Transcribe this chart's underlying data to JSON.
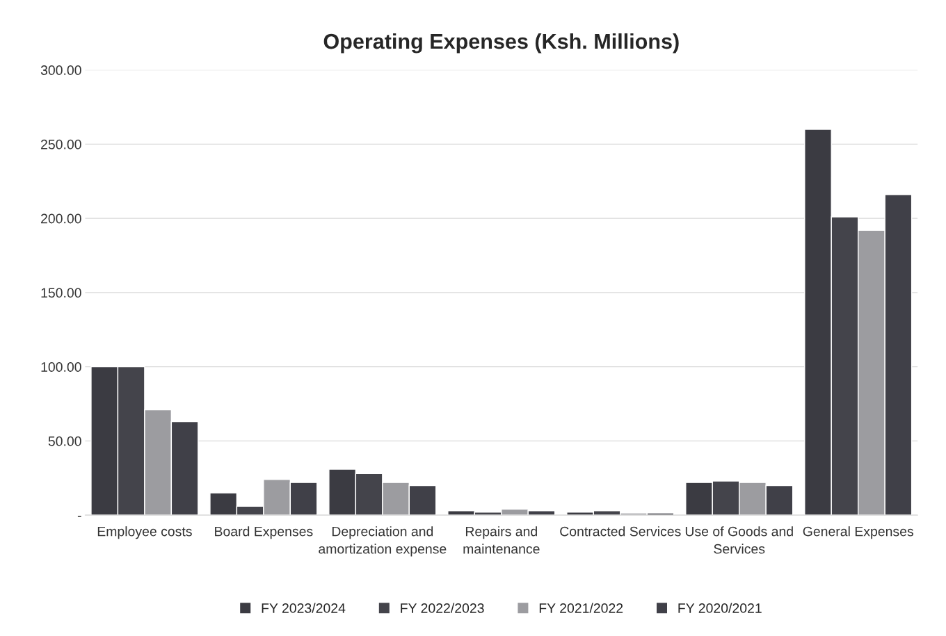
{
  "chart_data": {
    "type": "bar",
    "title": "Operating Expenses (Ksh. Millions)",
    "categories": [
      "Employee costs",
      "Board Expenses",
      "Depreciation and amortization expense",
      "Repairs and maintenance",
      "Contracted Services",
      "Use of Goods and Services",
      "General Expenses"
    ],
    "series": [
      {
        "name": "FY 2023/2024",
        "color": "#3b3b42",
        "values": [
          100,
          15,
          31,
          3,
          2,
          22,
          260
        ]
      },
      {
        "name": "FY 2022/2023",
        "color": "#44444b",
        "values": [
          100,
          6,
          28,
          2,
          3,
          23,
          201
        ]
      },
      {
        "name": "FY 2021/2022",
        "color": "#9c9ca0",
        "values": [
          71,
          24,
          22,
          4,
          1.5,
          22,
          192
        ]
      },
      {
        "name": "FY 2020/2021",
        "color": "#404048",
        "values": [
          63,
          22,
          20,
          3,
          1.5,
          20,
          216
        ]
      }
    ],
    "ylim": [
      0,
      300
    ],
    "yticks": [
      {
        "value": 0,
        "label": "-"
      },
      {
        "value": 50,
        "label": "50.00"
      },
      {
        "value": 100,
        "label": "100.00"
      },
      {
        "value": 150,
        "label": "150.00"
      },
      {
        "value": 200,
        "label": "200.00"
      },
      {
        "value": 250,
        "label": "250.00"
      },
      {
        "value": 300,
        "label": "300.00"
      }
    ],
    "grid": "y",
    "legend": "bottom"
  }
}
